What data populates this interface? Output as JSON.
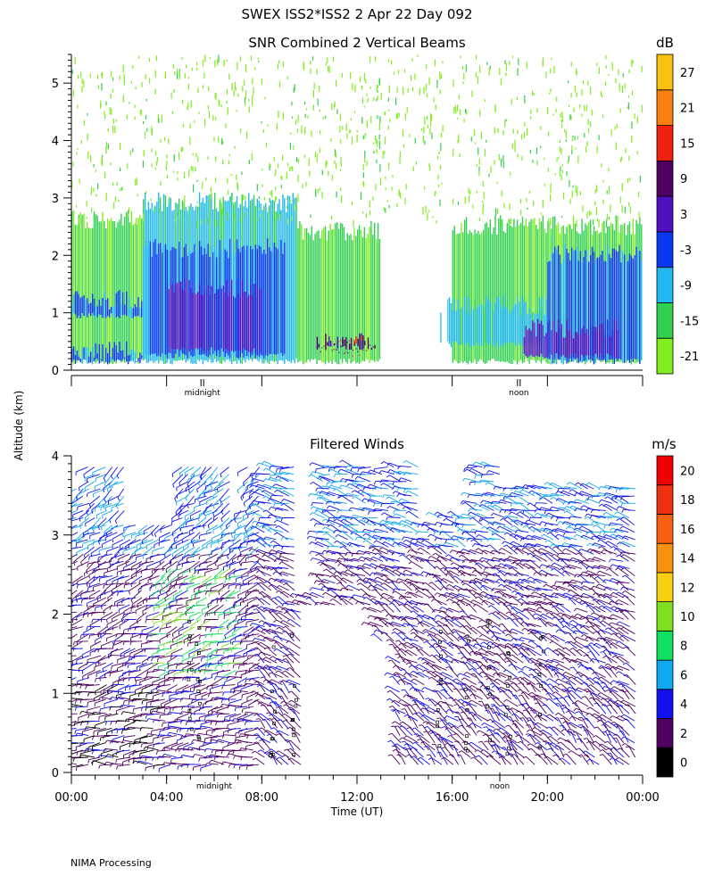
{
  "page": {
    "title": "SWEX ISS2*ISS2   2 Apr 22 Day 092",
    "y_axis_label": "Altitude (km)",
    "footer": "NIMA Processing"
  },
  "chart_data": [
    {
      "id": "snr",
      "type": "heatmap",
      "title": "SNR Combined 2 Vertical Beams",
      "ylabel": "Altitude (km)",
      "ylim": [
        0,
        5.5
      ],
      "xlim_hours": [
        0,
        24
      ],
      "y_ticks": [
        0,
        1,
        2,
        3,
        4,
        5
      ],
      "x_marker_labels": [
        {
          "x": 5.5,
          "label": "midnight"
        },
        {
          "x": 18.8,
          "label": "noon"
        }
      ],
      "colorbar": {
        "unit": "dB",
        "tick_labels": [
          "-21",
          "-15",
          "-9",
          "-3",
          "3",
          "9",
          "15",
          "21",
          "27"
        ],
        "colors": [
          "#80ee20",
          "#30d050",
          "#20b8f0",
          "#0838f0",
          "#5010c0",
          "#500060",
          "#f02010",
          "#f88010",
          "#f8c010"
        ]
      },
      "regions": [
        {
          "x0": 0,
          "x1": 3,
          "y0": 0.1,
          "y1": 2.8,
          "level": 1
        },
        {
          "x0": 3,
          "x1": 9.5,
          "y0": 0.1,
          "y1": 3.1,
          "level": 2
        },
        {
          "x0": 9.5,
          "x1": 13,
          "y0": 0.1,
          "y1": 2.6,
          "level": 1
        },
        {
          "x0": 16,
          "x1": 24,
          "y0": 0.1,
          "y1": 2.7,
          "level": 1
        },
        {
          "x0": 15.5,
          "x1": 20,
          "y0": 0.4,
          "y1": 1.3,
          "level": 2
        },
        {
          "x0": 20,
          "x1": 24,
          "y0": 0.1,
          "y1": 2.2,
          "level": 3
        },
        {
          "x0": 0,
          "x1": 3,
          "y0": 0.9,
          "y1": 1.4,
          "level": 3
        },
        {
          "x0": 0,
          "x1": 3,
          "y0": 0.1,
          "y1": 0.5,
          "level": 3
        },
        {
          "x0": 3,
          "x1": 9,
          "y0": 0.2,
          "y1": 2.3,
          "level": 3
        },
        {
          "x0": 4,
          "x1": 8,
          "y0": 0.3,
          "y1": 1.6,
          "level": 4
        },
        {
          "x0": 10.3,
          "x1": 12.8,
          "y0": 0.35,
          "y1": 0.65,
          "level": 5
        },
        {
          "x0": 11,
          "x1": 12.3,
          "y0": 0.45,
          "y1": 0.6,
          "level": 6
        },
        {
          "x0": 19,
          "x1": 23,
          "y0": 0.2,
          "y1": 0.9,
          "level": 4
        }
      ]
    },
    {
      "id": "winds",
      "type": "scatter",
      "title": "Filtered Winds",
      "xlabel": "Time (UT)",
      "ylabel": "Altitude (km)",
      "ylim": [
        0,
        4
      ],
      "xlim_hours": [
        0,
        24
      ],
      "x_ticks": [
        0,
        4,
        8,
        12,
        16,
        20,
        24
      ],
      "x_tick_labels": [
        "00:00",
        "04:00",
        "08:00",
        "12:00",
        "16:00",
        "20:00",
        "00:00"
      ],
      "y_ticks": [
        0,
        1,
        2,
        3,
        4
      ],
      "x_marker_labels": [
        {
          "x": 6,
          "label": "midnight"
        },
        {
          "x": 18,
          "label": "noon"
        }
      ],
      "colorbar": {
        "unit": "m/s",
        "tick_labels": [
          "0",
          "2",
          "4",
          "6",
          "8",
          "10",
          "12",
          "14",
          "16",
          "18",
          "20"
        ],
        "colors": [
          "#000000",
          "#500060",
          "#1010f0",
          "#10a8f0",
          "#10e060",
          "#80e020",
          "#f8d010",
          "#f89010",
          "#f86010",
          "#f03010",
          "#f00000"
        ]
      },
      "gaps": [
        {
          "x0": 9.8,
          "x1": 12.8,
          "y0": 0,
          "y1": 2.1
        },
        {
          "x0": 12.5,
          "x1": 13.6,
          "y0": 0,
          "y1": 1.6
        },
        {
          "x0": 9.4,
          "x1": 10.5,
          "y0": 2.3,
          "y1": 4
        },
        {
          "x0": 0,
          "x1": 0.6,
          "y0": 3.6,
          "y1": 4
        },
        {
          "x0": 2.3,
          "x1": 4.5,
          "y0": 3.2,
          "y1": 4
        },
        {
          "x0": 6.7,
          "x1": 7.4,
          "y0": 3.4,
          "y1": 4
        },
        {
          "x0": 18,
          "x1": 24,
          "y0": 3.6,
          "y1": 4
        },
        {
          "x0": 14.7,
          "x1": 17,
          "y0": 3.3,
          "y1": 4
        }
      ]
    }
  ]
}
